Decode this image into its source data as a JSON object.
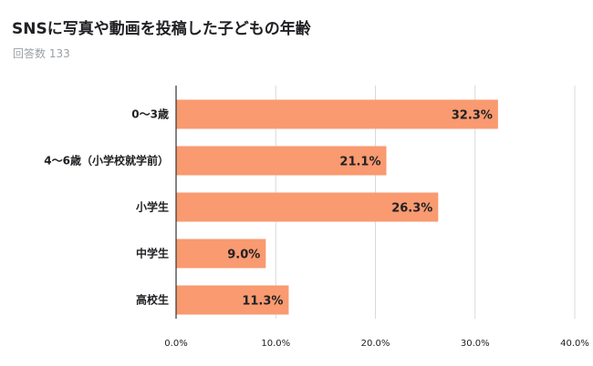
{
  "header": {
    "title": "SNSに写真や動画を投稿した子どもの年齢",
    "subtitle": "回答数 133"
  },
  "colors": {
    "bar": "#f99a70",
    "grid": "#d9d9d9",
    "axis": "#333333",
    "text": "#202124"
  },
  "chart_data": {
    "type": "bar",
    "orientation": "horizontal",
    "title": "SNSに写真や動画を投稿した子どもの年齢",
    "subtitle": "回答数 133",
    "categories": [
      "0〜3歳",
      "4〜6歳（小学校就学前）",
      "小学生",
      "中学生",
      "高校生"
    ],
    "values": [
      32.3,
      21.1,
      26.3,
      9.0,
      11.3
    ],
    "value_labels": [
      "32.3%",
      "21.1%",
      "26.3%",
      "9.0%",
      "11.3%"
    ],
    "x_ticks": [
      "0.0%",
      "10.0%",
      "20.0%",
      "30.0%",
      "40.0%"
    ],
    "xlim": [
      0,
      40
    ],
    "grid": true,
    "legend": "none"
  }
}
